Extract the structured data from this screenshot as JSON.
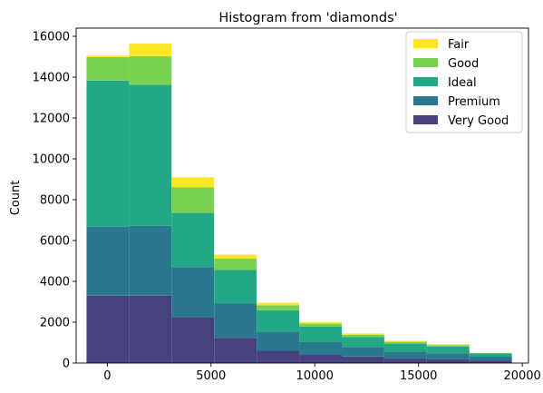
{
  "chart_data": {
    "type": "bar",
    "stacked": true,
    "title": "Histogram from 'diamonds'",
    "xlabel": "",
    "ylabel": "Count",
    "xlim": [
      -1500,
      20300
    ],
    "ylim": [
      0,
      16400
    ],
    "xticks": [
      0,
      5000,
      10000,
      15000,
      20000
    ],
    "yticks": [
      0,
      2000,
      4000,
      6000,
      8000,
      10000,
      12000,
      14000,
      16000
    ],
    "bin_edges": [
      -1000,
      1050,
      3100,
      5150,
      7200,
      9250,
      11300,
      13350,
      15400,
      17450,
      19500
    ],
    "legend_position": "upper right",
    "grid": false,
    "series": [
      {
        "name": "Very Good",
        "color": "#46427f",
        "values": [
          3300,
          3300,
          2250,
          1230,
          600,
          420,
          320,
          220,
          180,
          130
        ]
      },
      {
        "name": "Premium",
        "color": "#2a788e",
        "values": [
          3380,
          3420,
          2450,
          1680,
          930,
          620,
          470,
          350,
          300,
          180
        ]
      },
      {
        "name": "Ideal",
        "color": "#22a884",
        "values": [
          7150,
          6900,
          2650,
          1650,
          1050,
          740,
          480,
          380,
          330,
          160
        ]
      },
      {
        "name": "Good",
        "color": "#7ad151",
        "values": [
          1150,
          1400,
          1250,
          550,
          250,
          150,
          120,
          90,
          70,
          20
        ]
      },
      {
        "name": "Fair",
        "color": "#fde725",
        "values": [
          80,
          620,
          500,
          200,
          120,
          80,
          60,
          50,
          40,
          10
        ]
      }
    ],
    "legend_order": [
      "Fair",
      "Good",
      "Ideal",
      "Premium",
      "Very Good"
    ]
  }
}
